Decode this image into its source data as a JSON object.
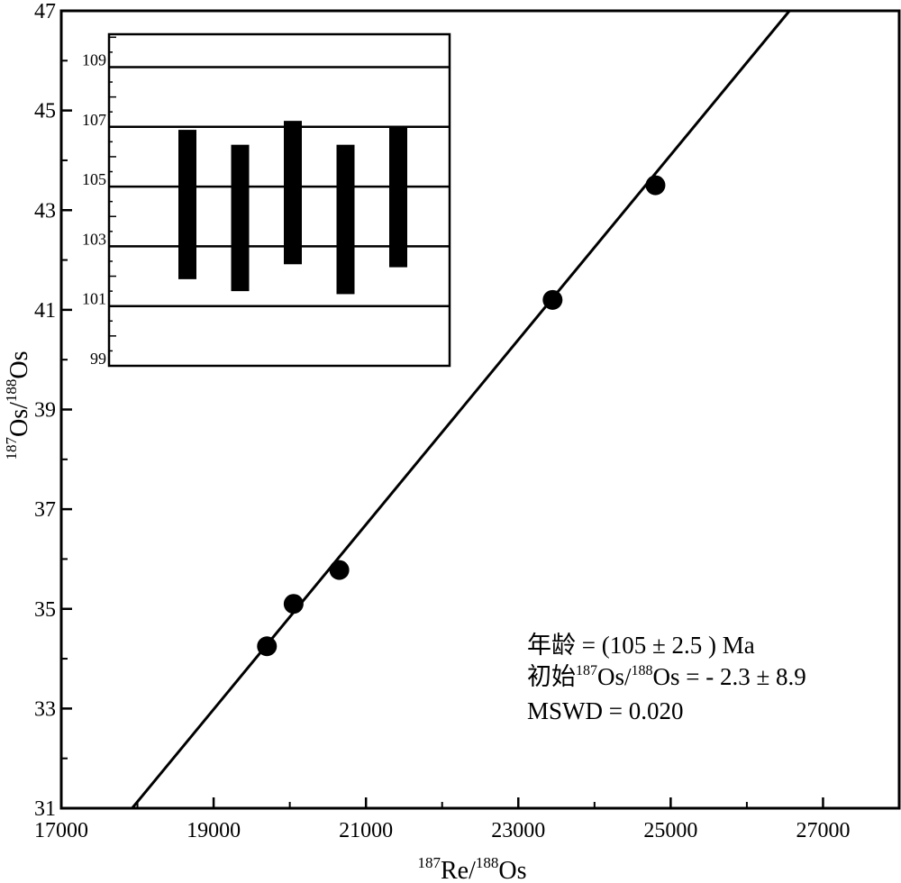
{
  "chart_data": [
    {
      "type": "scatter",
      "title": "",
      "xlabel": {
        "sup": "187",
        "main": "Re/",
        "sup2": "188",
        "main2": "Os"
      },
      "ylabel": {
        "sup": "187",
        "main": "Os/",
        "sup2": "188",
        "main2": "Os"
      },
      "xlim": [
        17000,
        28000
      ],
      "ylim": [
        31,
        47
      ],
      "x_ticks": [
        17000,
        19000,
        21000,
        23000,
        25000,
        27000
      ],
      "x_tick_labels": [
        "17000",
        "19000",
        "21000",
        "23000",
        "25000",
        "27000"
      ],
      "y_ticks": [
        31,
        33,
        35,
        37,
        39,
        41,
        43,
        45,
        47
      ],
      "y_tick_labels": [
        "31",
        "33",
        "35",
        "37",
        "39",
        "41",
        "43",
        "45",
        "47"
      ],
      "points": [
        {
          "x": 19700,
          "y": 34.25
        },
        {
          "x": 20050,
          "y": 35.1
        },
        {
          "x": 20650,
          "y": 35.78
        },
        {
          "x": 23450,
          "y": 41.2
        },
        {
          "x": 24800,
          "y": 43.5
        }
      ],
      "regression_line": {
        "x": [
          17930,
          26560
        ],
        "y": [
          31,
          47
        ]
      },
      "annotations": [
        {
          "text": "年龄 = (105 ± 2.5 ) Ma"
        },
        {
          "pre": "初始",
          "sup": "187",
          "mid": "Os/",
          "sup2": "188",
          "post": "Os = - 2.3 ± 8.9"
        },
        {
          "text": "MSWD = 0.020"
        }
      ]
    },
    {
      "type": "bar",
      "subtype": "error-bars",
      "title": "",
      "ylim": [
        99,
        110.1
      ],
      "y_ticks": [
        99,
        101,
        103,
        105,
        107,
        109
      ],
      "y_tick_labels": [
        "99",
        "101",
        "103",
        "105",
        "107",
        "109"
      ],
      "bars": [
        {
          "low": 101.9,
          "high": 106.9
        },
        {
          "low": 101.5,
          "high": 106.4
        },
        {
          "low": 102.4,
          "high": 107.2
        },
        {
          "low": 101.4,
          "high": 106.4
        },
        {
          "low": 102.3,
          "high": 107.0
        }
      ]
    }
  ]
}
